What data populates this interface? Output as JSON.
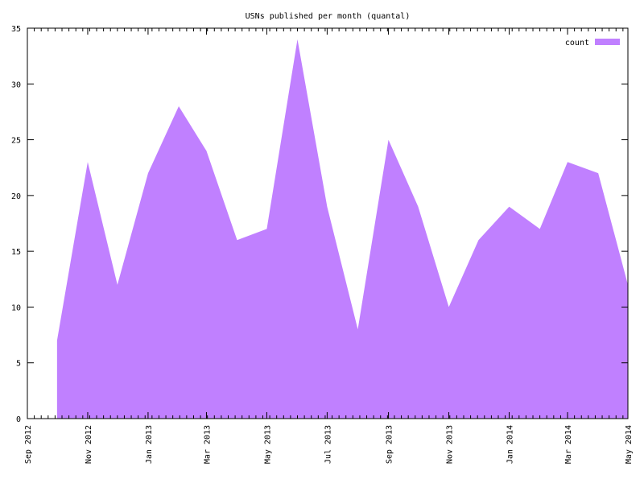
{
  "chart_data": {
    "type": "area",
    "title": "USNs published per month (quantal)",
    "xlabel": "",
    "ylabel": "",
    "xlim": [
      "2012-09-01",
      "2014-05-01"
    ],
    "ylim": [
      0,
      35
    ],
    "yticks": [
      0,
      5,
      10,
      15,
      20,
      25,
      30,
      35
    ],
    "xticks": [
      {
        "date": "2012-09-01",
        "label": "Sep 2012"
      },
      {
        "date": "2012-11-01",
        "label": "Nov 2012"
      },
      {
        "date": "2013-01-01",
        "label": "Jan 2013"
      },
      {
        "date": "2013-03-01",
        "label": "Mar 2013"
      },
      {
        "date": "2013-05-01",
        "label": "May 2013"
      },
      {
        "date": "2013-07-01",
        "label": "Jul 2013"
      },
      {
        "date": "2013-09-01",
        "label": "Sep 2013"
      },
      {
        "date": "2013-11-01",
        "label": "Nov 2013"
      },
      {
        "date": "2014-01-01",
        "label": "Jan 2014"
      },
      {
        "date": "2014-03-01",
        "label": "Mar 2014"
      },
      {
        "date": "2014-05-01",
        "label": "May 2014"
      }
    ],
    "grid": false,
    "legend": "top-right",
    "series": [
      {
        "name": "count",
        "color": "#c080ff",
        "points": [
          {
            "x": "2012-10-01",
            "y": 7
          },
          {
            "x": "2012-11-01",
            "y": 23
          },
          {
            "x": "2012-12-01",
            "y": 12
          },
          {
            "x": "2013-01-01",
            "y": 22
          },
          {
            "x": "2013-02-01",
            "y": 28
          },
          {
            "x": "2013-03-01",
            "y": 24
          },
          {
            "x": "2013-04-01",
            "y": 16
          },
          {
            "x": "2013-05-01",
            "y": 17
          },
          {
            "x": "2013-06-01",
            "y": 34
          },
          {
            "x": "2013-07-01",
            "y": 19
          },
          {
            "x": "2013-08-01",
            "y": 8
          },
          {
            "x": "2013-09-01",
            "y": 25
          },
          {
            "x": "2013-10-01",
            "y": 19
          },
          {
            "x": "2013-11-01",
            "y": 10
          },
          {
            "x": "2013-12-01",
            "y": 16
          },
          {
            "x": "2014-01-01",
            "y": 19
          },
          {
            "x": "2014-02-01",
            "y": 17
          },
          {
            "x": "2014-03-01",
            "y": 23
          },
          {
            "x": "2014-04-01",
            "y": 22
          },
          {
            "x": "2014-05-01",
            "y": 12
          }
        ]
      }
    ]
  }
}
